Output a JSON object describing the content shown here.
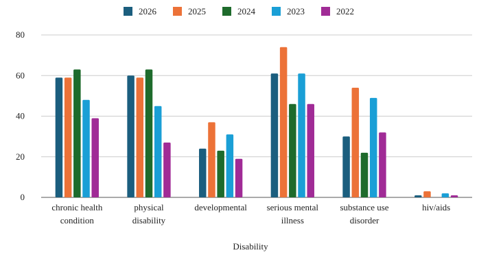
{
  "chart_data": {
    "type": "bar",
    "title": "",
    "xlabel": "Disability",
    "ylabel": "",
    "ylim": [
      0,
      80
    ],
    "yticks": [
      0,
      20,
      40,
      60,
      80
    ],
    "grid": true,
    "legend_position": "top",
    "categories": [
      [
        "chronic health",
        "condition"
      ],
      [
        "physical",
        "disability"
      ],
      [
        "developmental"
      ],
      [
        "serious mental",
        "illness"
      ],
      [
        "substance use",
        "disorder"
      ],
      [
        "hiv/aids"
      ]
    ],
    "series": [
      {
        "name": "2026",
        "color": "#1b5e7e",
        "values": [
          59,
          60,
          24,
          61,
          30,
          1
        ]
      },
      {
        "name": "2025",
        "color": "#ec7238",
        "values": [
          59,
          59,
          37,
          74,
          54,
          3
        ]
      },
      {
        "name": "2024",
        "color": "#1e6b2c",
        "values": [
          63,
          63,
          23,
          46,
          22,
          0
        ]
      },
      {
        "name": "2023",
        "color": "#1a9fd6",
        "values": [
          48,
          45,
          31,
          61,
          49,
          2
        ]
      },
      {
        "name": "2022",
        "color": "#a02b96",
        "values": [
          39,
          27,
          19,
          46,
          32,
          1
        ]
      }
    ]
  }
}
